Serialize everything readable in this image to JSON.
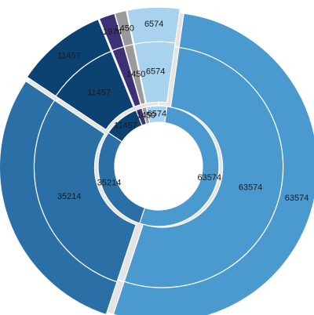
{
  "chart_data": {
    "type": "sunburst",
    "title": "",
    "segments": [
      {
        "value": 63574,
        "color": "#4A9AD0",
        "label": "63574"
      },
      {
        "value": 35214,
        "color": "#2A6FA6",
        "label": "35214"
      },
      {
        "value": 11457,
        "color": "#0C4272",
        "label": "11457"
      },
      {
        "value": 1974,
        "color": "#3D3077",
        "label": "1974"
      },
      {
        "value": 1450,
        "color": "#9A9A9A",
        "label": "1450"
      },
      {
        "value": 6574,
        "color": "#A8D2EE",
        "label": "6574"
      }
    ],
    "rings": [
      {
        "name": "inner",
        "labeled": [
          35214,
          11457,
          1450,
          6574,
          63574
        ]
      },
      {
        "name": "middle",
        "labeled": [
          35214,
          11457,
          1450,
          6574,
          63574
        ]
      },
      {
        "name": "outer",
        "labeled": [
          11457,
          1974,
          1450,
          6574,
          63574
        ]
      }
    ],
    "background_color": "#E4E4E4"
  }
}
